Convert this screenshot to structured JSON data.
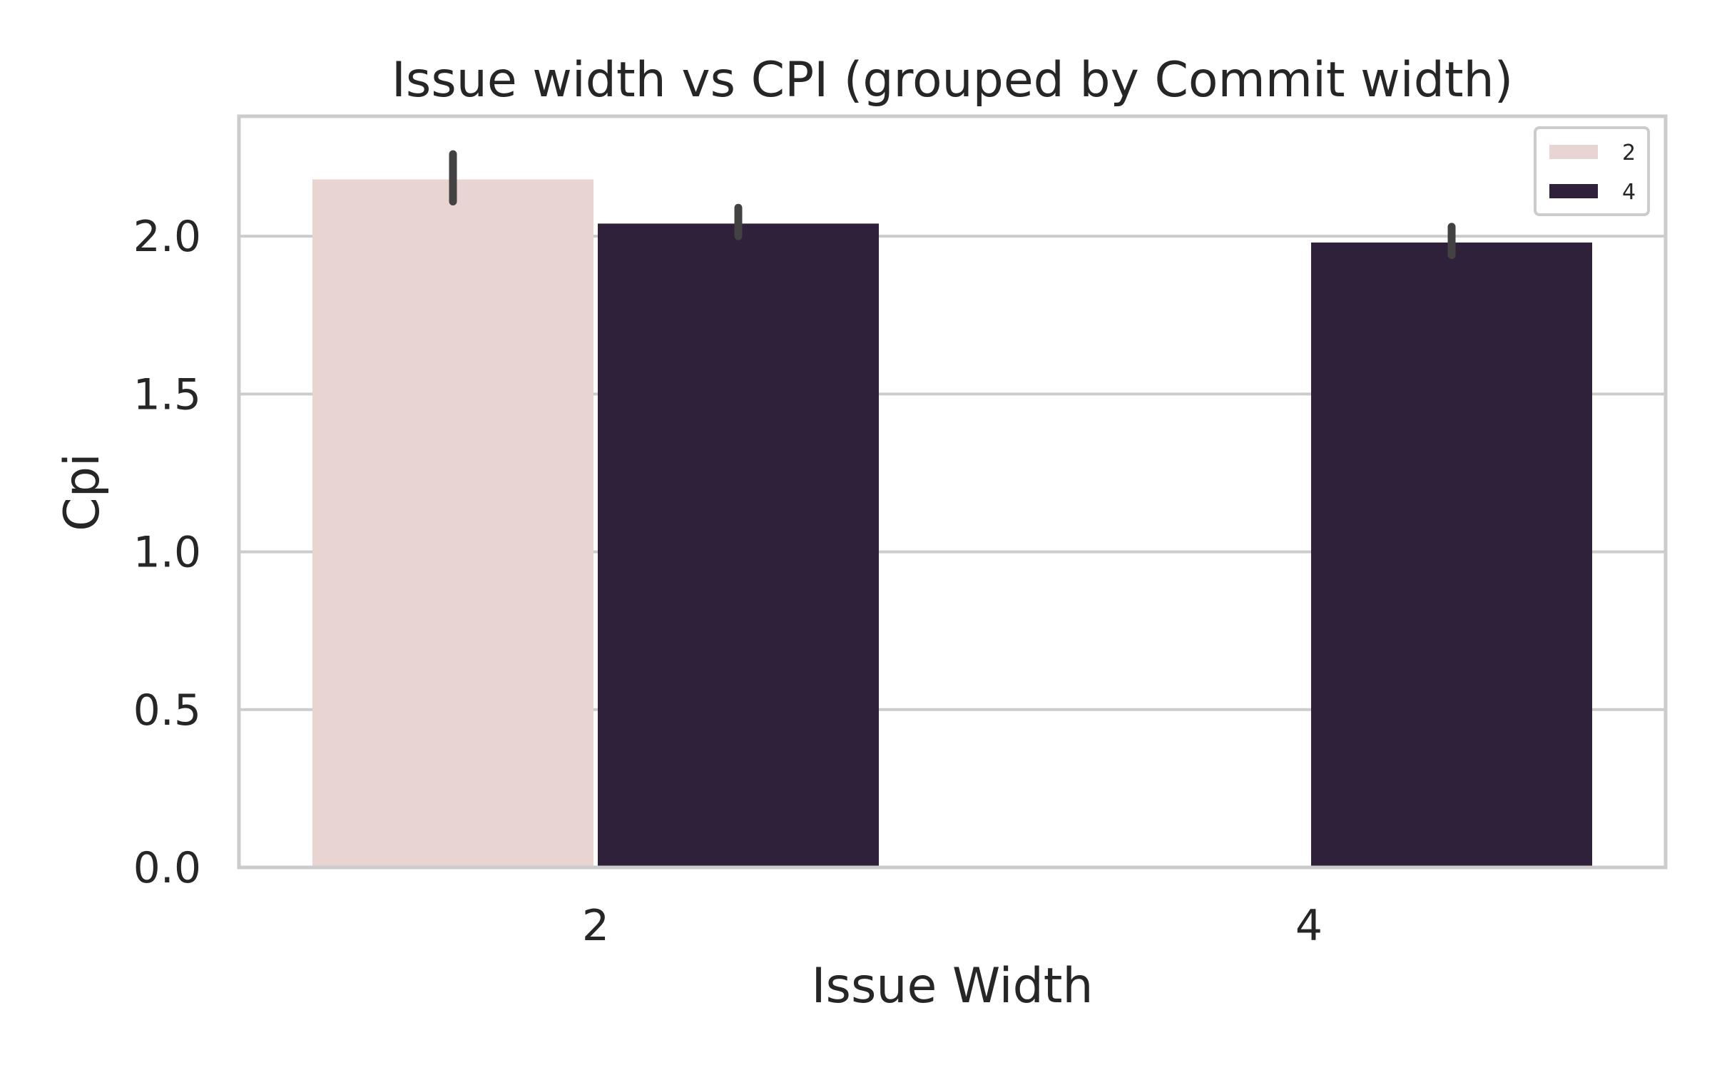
{
  "chart_data": {
    "type": "bar",
    "title": "Issue width vs CPI (grouped by Commit width)",
    "xlabel": "Issue Width",
    "ylabel": "Cpi",
    "categories": [
      "2",
      "4"
    ],
    "ylim": [
      0,
      2.38
    ],
    "yticks": [
      "0.0",
      "0.5",
      "1.0",
      "1.5",
      "2.0"
    ],
    "grid": true,
    "legend_position": "top-right",
    "series": [
      {
        "name": "2",
        "color": "#e8d4d0",
        "values": [
          2.18,
          null
        ],
        "error_low": [
          2.11,
          null
        ],
        "error_high": [
          2.26,
          null
        ]
      },
      {
        "name": "4",
        "color": "#2e2139",
        "values": [
          2.04,
          1.98
        ],
        "error_low": [
          2.0,
          1.94
        ],
        "error_high": [
          2.09,
          2.03
        ]
      }
    ]
  }
}
